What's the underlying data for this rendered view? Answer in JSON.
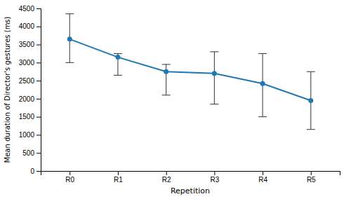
{
  "chart_data": {
    "type": "line",
    "categories": [
      "R0",
      "R1",
      "R2",
      "R3",
      "R4",
      "R5"
    ],
    "values": [
      3650,
      3150,
      2750,
      2700,
      2420,
      1950
    ],
    "ci_lower": [
      3000,
      2650,
      2100,
      1850,
      1500,
      1150
    ],
    "ci_upper": [
      4350,
      3250,
      2950,
      3300,
      3250,
      2750
    ],
    "xlabel": "Repetition",
    "ylabel": "Mean duration of Director's gestures (ms)",
    "ylim": [
      0,
      4500
    ],
    "yticks": [
      0,
      500,
      1000,
      1500,
      2000,
      2500,
      3000,
      3500,
      4000,
      4500
    ],
    "grid": false,
    "marker": "circle"
  }
}
